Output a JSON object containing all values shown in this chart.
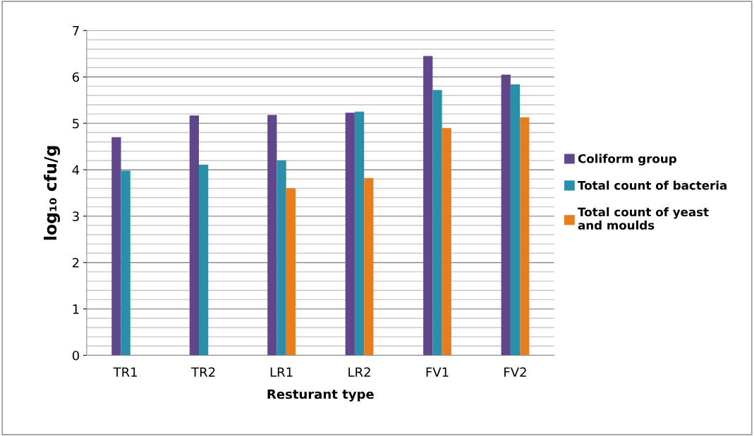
{
  "chart_data": {
    "type": "bar",
    "xlabel": "Resturant type",
    "ylabel": "log₁₀ cfu/g",
    "categories": [
      "TR1",
      "TR2",
      "LR1",
      "LR2",
      "FV1",
      "FV2"
    ],
    "series": [
      {
        "name": "Coliform group",
        "color": "#60468c",
        "values": [
          4.7,
          5.17,
          5.18,
          5.23,
          6.45,
          6.05
        ]
      },
      {
        "name": "Total count of bacteria",
        "color": "#2a8fa8",
        "values": [
          3.98,
          4.11,
          4.2,
          5.25,
          5.72,
          5.84
        ]
      },
      {
        "name": "Total count of yeast\nand moulds",
        "color": "#e97d1e",
        "values": [
          null,
          null,
          3.6,
          3.82,
          4.9,
          5.13
        ]
      }
    ],
    "ylim": [
      0,
      7
    ],
    "yticks": [
      0,
      1,
      2,
      3,
      4,
      5,
      6,
      7
    ],
    "grid": "y",
    "legend": "right"
  }
}
